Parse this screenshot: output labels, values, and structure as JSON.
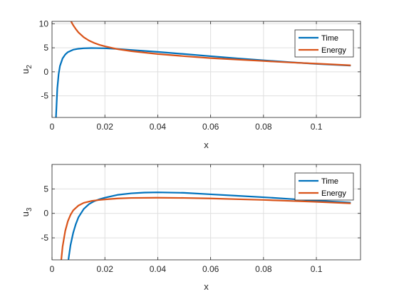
{
  "chart_data": [
    {
      "type": "line",
      "xlabel": "x",
      "ylabel": "u",
      "ylabel_sub": "2",
      "xlim": [
        0,
        0.1167
      ],
      "ylim": [
        -9.5,
        10.5
      ],
      "xticks": [
        0,
        0.02,
        0.04,
        0.06,
        0.08,
        0.1
      ],
      "xtick_labels": [
        "0",
        "0.02",
        "0.04",
        "0.06",
        "0.08",
        "0.1"
      ],
      "yticks": [
        -5,
        0,
        5,
        10
      ],
      "ytick_labels": [
        "-5",
        "0",
        "5",
        "10"
      ],
      "grid": true,
      "legend_position": "top-right",
      "series": [
        {
          "name": "Time",
          "color": "#0072BD",
          "x": [
            0.0015,
            0.002,
            0.0025,
            0.003,
            0.004,
            0.005,
            0.006,
            0.008,
            0.01,
            0.012,
            0.015,
            0.02,
            0.025,
            0.03,
            0.04,
            0.05,
            0.06,
            0.07,
            0.08,
            0.09,
            0.1,
            0.113
          ],
          "y": [
            -9.5,
            -3.5,
            -0.5,
            1.2,
            2.8,
            3.6,
            4.1,
            4.6,
            4.8,
            4.9,
            4.95,
            4.9,
            4.75,
            4.55,
            4.15,
            3.7,
            3.25,
            2.8,
            2.4,
            2.0,
            1.65,
            1.3
          ]
        },
        {
          "name": "Energy",
          "color": "#D95319",
          "x": [
            0.0072,
            0.008,
            0.009,
            0.01,
            0.012,
            0.014,
            0.016,
            0.018,
            0.02,
            0.025,
            0.03,
            0.04,
            0.05,
            0.06,
            0.07,
            0.08,
            0.09,
            0.1,
            0.113
          ],
          "y": [
            10.5,
            9.7,
            8.9,
            8.2,
            7.2,
            6.5,
            6.0,
            5.6,
            5.3,
            4.7,
            4.3,
            3.7,
            3.25,
            2.85,
            2.55,
            2.25,
            1.95,
            1.7,
            1.35
          ]
        }
      ]
    },
    {
      "type": "line",
      "xlabel": "x",
      "ylabel": "u",
      "ylabel_sub": "3",
      "xlim": [
        0,
        0.1167
      ],
      "ylim": [
        -9.5,
        10
      ],
      "xticks": [
        0,
        0.02,
        0.04,
        0.06,
        0.08,
        0.1
      ],
      "xtick_labels": [
        "0",
        "0.02",
        "0.04",
        "0.06",
        "0.08",
        "0.1"
      ],
      "yticks": [
        -5,
        0,
        5
      ],
      "ytick_labels": [
        "-5",
        "0",
        "5"
      ],
      "grid": true,
      "legend_position": "top-right",
      "series": [
        {
          "name": "Time",
          "color": "#0072BD",
          "x": [
            0.0062,
            0.007,
            0.008,
            0.009,
            0.01,
            0.012,
            0.014,
            0.016,
            0.018,
            0.02,
            0.025,
            0.03,
            0.035,
            0.04,
            0.05,
            0.06,
            0.07,
            0.08,
            0.09,
            0.1,
            0.113
          ],
          "y": [
            -9.5,
            -6.5,
            -4.0,
            -2.2,
            -0.8,
            0.9,
            1.9,
            2.5,
            2.9,
            3.2,
            3.8,
            4.1,
            4.25,
            4.3,
            4.2,
            3.9,
            3.6,
            3.3,
            2.95,
            2.6,
            2.2
          ]
        },
        {
          "name": "Energy",
          "color": "#D95319",
          "x": [
            0.0035,
            0.004,
            0.005,
            0.006,
            0.007,
            0.008,
            0.01,
            0.012,
            0.015,
            0.018,
            0.02,
            0.025,
            0.03,
            0.04,
            0.05,
            0.06,
            0.07,
            0.08,
            0.09,
            0.1,
            0.113
          ],
          "y": [
            -9.5,
            -6.8,
            -3.6,
            -1.6,
            -0.3,
            0.6,
            1.6,
            2.15,
            2.55,
            2.75,
            2.85,
            3.05,
            3.15,
            3.2,
            3.15,
            3.05,
            2.9,
            2.75,
            2.55,
            2.35,
            2.05
          ]
        }
      ]
    }
  ]
}
